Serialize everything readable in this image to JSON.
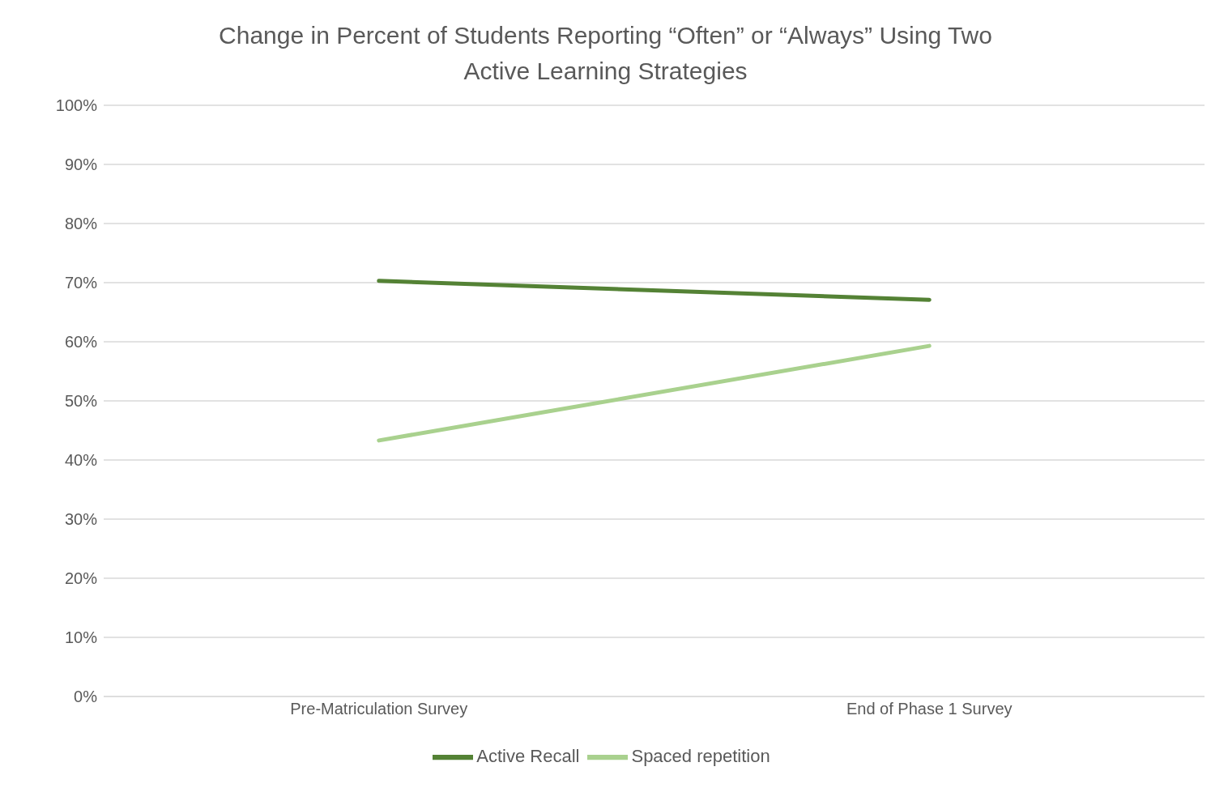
{
  "chart_data": {
    "type": "line",
    "title": "Change in Percent of Students Reporting “Often” or “Always” Using Two Active Learning Strategies",
    "categories": [
      "Pre-Matriculation Survey",
      "End of Phase 1 Survey"
    ],
    "series": [
      {
        "name": "Spaced repetition",
        "color": "#a9d18e",
        "values": [
          43.3,
          59.3
        ]
      },
      {
        "name": "Active Recall",
        "color": "#548235",
        "values": [
          70.3,
          67.1
        ]
      }
    ],
    "ylim": [
      0,
      100
    ],
    "yticks": [
      {
        "value": 0,
        "label": "0%"
      },
      {
        "value": 10,
        "label": "10%"
      },
      {
        "value": 20,
        "label": "20%"
      },
      {
        "value": 30,
        "label": "30%"
      },
      {
        "value": 40,
        "label": "40%"
      },
      {
        "value": 50,
        "label": "50%"
      },
      {
        "value": 60,
        "label": "60%"
      },
      {
        "value": 70,
        "label": "70%"
      },
      {
        "value": 80,
        "label": "80%"
      },
      {
        "value": 90,
        "label": "90%"
      },
      {
        "value": 100,
        "label": "100%"
      }
    ],
    "grid": "y",
    "legend": "bottom",
    "marker": "none",
    "line_style": "solid"
  }
}
